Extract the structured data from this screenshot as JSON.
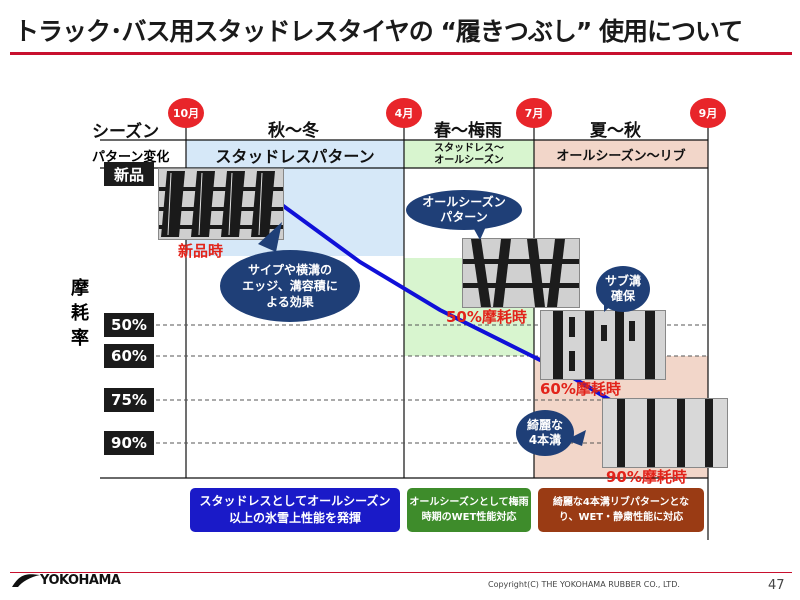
{
  "title": "トラック･バス用スタッドレスタイヤの “履きつぶし” 使用について",
  "row_labels": {
    "season": "シーズン",
    "pattern": "パターン変化",
    "wear_rate": "摩耗率"
  },
  "months": [
    "10月",
    "4月",
    "7月",
    "9月"
  ],
  "seasons": [
    "秋～冬",
    "春～梅雨",
    "夏～秋"
  ],
  "patterns": [
    "スタッドレスパターン",
    "スタッドレス～\nオールシーズン",
    "オールシーズン～リブ"
  ],
  "wear_levels": [
    "新品",
    "50%",
    "60%",
    "75%",
    "90%"
  ],
  "tire_labels": [
    "新品時",
    "50%摩耗時",
    "60%摩耗時",
    "90%摩耗時"
  ],
  "callouts": [
    "サイプや横溝の\nエッジ、溝容積に\nよる効果",
    "オールシーズン\nパターン",
    "サブ溝\n確保",
    "綺麗な\n4本溝"
  ],
  "bottom_notes": [
    "スタッドレスとしてオールシーズン\n以上の氷雪上性能を発揮",
    "オールシーズンとして梅雨\n時期のWET性能対応",
    "綺麗な4本溝リブパターンとな\nり、WET・静粛性能に対応"
  ],
  "footer": {
    "logo": "YOKOHAMA",
    "copyright": "Copyright(C) THE YOKOHAMA RUBBER CO., LTD.",
    "page": "47"
  },
  "colors": {
    "accent_red": "#e2231a",
    "line_blue": "#1010d8",
    "callout_navy": "#1f3f77",
    "stud_blue": "#d6e8f8",
    "all_green": "#d8f5cf",
    "rib_peach": "#f2d6c9"
  }
}
